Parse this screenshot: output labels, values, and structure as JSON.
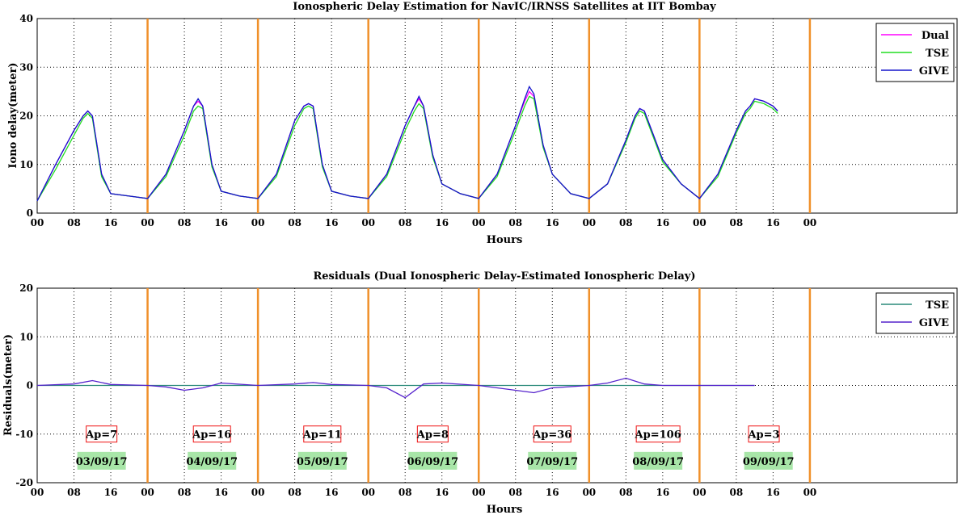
{
  "chart_data": [
    {
      "type": "line",
      "title": "Ionospheric Delay Estimation for NavIC/IRNSS Satellites at IIT Bombay",
      "xlabel": "Hours",
      "ylabel": "Iono delay(meter)",
      "ylim": [
        0,
        40
      ],
      "xlim_hours": [
        0,
        168
      ],
      "yticks": [
        "0",
        "10",
        "20",
        "30",
        "40"
      ],
      "xticks": [
        "00",
        "08",
        "16",
        "00",
        "08",
        "16",
        "00",
        "08",
        "16",
        "00",
        "08",
        "16",
        "00",
        "08",
        "16",
        "00",
        "08",
        "16",
        "00",
        "08",
        "16",
        "00"
      ],
      "day_boundaries_hours": [
        24,
        48,
        72,
        96,
        120,
        144,
        168
      ],
      "grid": true,
      "legend_position": "top-right",
      "legend": [
        "Dual",
        "TSE",
        "GIVE"
      ],
      "series": [
        {
          "name": "Dual",
          "color": "#ff00ff",
          "x": [
            0,
            4,
            8,
            10,
            11,
            12,
            14,
            16,
            20,
            24,
            28,
            32,
            34,
            35,
            36,
            38,
            40,
            44,
            48,
            52,
            56,
            58,
            59,
            60,
            62,
            64,
            68,
            72,
            76,
            80,
            82,
            83,
            84,
            86,
            88,
            92,
            96,
            100,
            104,
            106,
            107,
            108,
            110,
            112,
            116,
            120,
            124,
            128,
            130,
            131,
            132,
            134,
            136,
            140,
            144,
            148,
            152,
            154,
            155,
            156,
            158,
            160,
            161
          ],
          "y": [
            2.5,
            10,
            17,
            20,
            21,
            20,
            8,
            4,
            3.5,
            3,
            8,
            17,
            22,
            23,
            22,
            10,
            4.5,
            3.5,
            3,
            8,
            19,
            22,
            22.5,
            22,
            10,
            4.5,
            3.5,
            3,
            8,
            18,
            22,
            23.5,
            22,
            12,
            6,
            4,
            3,
            8,
            18,
            23,
            25,
            24,
            14,
            8,
            4,
            3,
            6,
            15,
            20,
            21.5,
            21,
            16,
            11,
            6,
            3,
            8,
            17,
            21,
            22,
            23.5,
            23,
            22,
            21
          ]
        },
        {
          "name": "TSE",
          "color": "#22dd22",
          "x": [
            0,
            4,
            8,
            10,
            11,
            12,
            14,
            16,
            20,
            24,
            28,
            32,
            34,
            35,
            36,
            38,
            40,
            44,
            48,
            52,
            56,
            58,
            59,
            60,
            62,
            64,
            68,
            72,
            76,
            80,
            82,
            83,
            84,
            86,
            88,
            92,
            96,
            100,
            104,
            106,
            107,
            108,
            110,
            112,
            116,
            120,
            124,
            128,
            130,
            131,
            132,
            134,
            136,
            140,
            144,
            148,
            152,
            154,
            155,
            156,
            158,
            160,
            161
          ],
          "y": [
            2.5,
            9,
            16,
            19.5,
            20.5,
            19.5,
            7.5,
            4,
            3.5,
            3,
            7.5,
            16,
            21,
            22,
            21.5,
            9.5,
            4.5,
            3.5,
            3,
            7.5,
            18,
            21.5,
            22,
            21.5,
            9.5,
            4.5,
            3.5,
            3,
            7.5,
            17,
            21,
            22.5,
            21.5,
            11.5,
            6,
            4,
            3,
            7.5,
            17,
            22,
            24,
            23.5,
            13.5,
            8,
            4,
            3,
            6,
            14.5,
            19.5,
            21,
            20.5,
            15.5,
            10.5,
            6,
            3,
            7.5,
            16.5,
            20.5,
            21.5,
            23,
            22.5,
            21.5,
            20.5
          ]
        },
        {
          "name": "GIVE",
          "color": "#1515cc",
          "x": [
            0,
            4,
            8,
            10,
            11,
            12,
            14,
            16,
            20,
            24,
            28,
            32,
            34,
            35,
            36,
            38,
            40,
            44,
            48,
            52,
            56,
            58,
            59,
            60,
            62,
            64,
            68,
            72,
            76,
            80,
            82,
            83,
            84,
            86,
            88,
            92,
            96,
            100,
            104,
            106,
            107,
            108,
            110,
            112,
            116,
            120,
            124,
            128,
            130,
            131,
            132,
            134,
            136,
            140,
            144,
            148,
            152,
            154,
            155,
            156,
            158,
            160,
            161
          ],
          "y": [
            2.5,
            10,
            17,
            20,
            21,
            20,
            8,
            4,
            3.5,
            3,
            8,
            17,
            22,
            23.5,
            22,
            10,
            4.5,
            3.5,
            3,
            8,
            19,
            22,
            22.5,
            22,
            10,
            4.5,
            3.5,
            3,
            8,
            18,
            22,
            24,
            22,
            12,
            6,
            4,
            3,
            8,
            18,
            23.5,
            26,
            24.5,
            14,
            8,
            4,
            3,
            6,
            15,
            20,
            21.5,
            21,
            16,
            11,
            6,
            3,
            8,
            17,
            21,
            22,
            23.5,
            23,
            22,
            21
          ]
        }
      ]
    },
    {
      "type": "line",
      "title": "Residuals (Dual Ionospheric Delay-Estimated Ionospheric Delay)",
      "xlabel": "Hours",
      "ylabel": "Residuals(meter)",
      "ylim": [
        -20,
        20
      ],
      "xlim_hours": [
        0,
        168
      ],
      "yticks": [
        "-20",
        "-10",
        "0",
        "10",
        "20"
      ],
      "xticks": [
        "00",
        "08",
        "16",
        "00",
        "08",
        "16",
        "00",
        "08",
        "16",
        "00",
        "08",
        "16",
        "00",
        "08",
        "16",
        "00",
        "08",
        "16",
        "00",
        "08",
        "16",
        "00"
      ],
      "day_boundaries_hours": [
        24,
        48,
        72,
        96,
        120,
        144,
        168
      ],
      "grid": true,
      "legend_position": "top-right",
      "legend": [
        "TSE",
        "GIVE"
      ],
      "series": [
        {
          "name": "TSE",
          "color": "#2a8a7a",
          "x": [
            0,
            156
          ],
          "y": [
            0,
            0
          ]
        },
        {
          "name": "GIVE",
          "color": "#5522cc",
          "x": [
            0,
            8,
            12,
            16,
            24,
            28,
            32,
            36,
            40,
            48,
            56,
            60,
            64,
            72,
            76,
            80,
            84,
            88,
            96,
            104,
            108,
            112,
            120,
            124,
            128,
            132,
            136,
            140,
            144,
            152,
            156
          ],
          "y": [
            0,
            0.3,
            1,
            0.2,
            0,
            -0.3,
            -1,
            -0.5,
            0.5,
            0,
            0.3,
            0.6,
            0.2,
            0,
            -0.5,
            -2.5,
            0.3,
            0.5,
            0,
            -1,
            -1.5,
            -0.5,
            0,
            0.5,
            1.5,
            0.3,
            0,
            0,
            0,
            0,
            0
          ]
        }
      ],
      "annotations": {
        "ap": [
          "Ap=7",
          "Ap=16",
          "Ap=11",
          "Ap=8",
          "Ap=36",
          "Ap=106",
          "Ap=3"
        ],
        "dates": [
          "03/09/17",
          "04/09/17",
          "05/09/17",
          "06/09/17",
          "07/09/17",
          "08/09/17",
          "09/09/17"
        ]
      }
    }
  ],
  "colors": {
    "day_line": "#f0902a",
    "grid": "#000000",
    "ap_box": "#ee1111",
    "date_box": "#a8e6a8"
  }
}
